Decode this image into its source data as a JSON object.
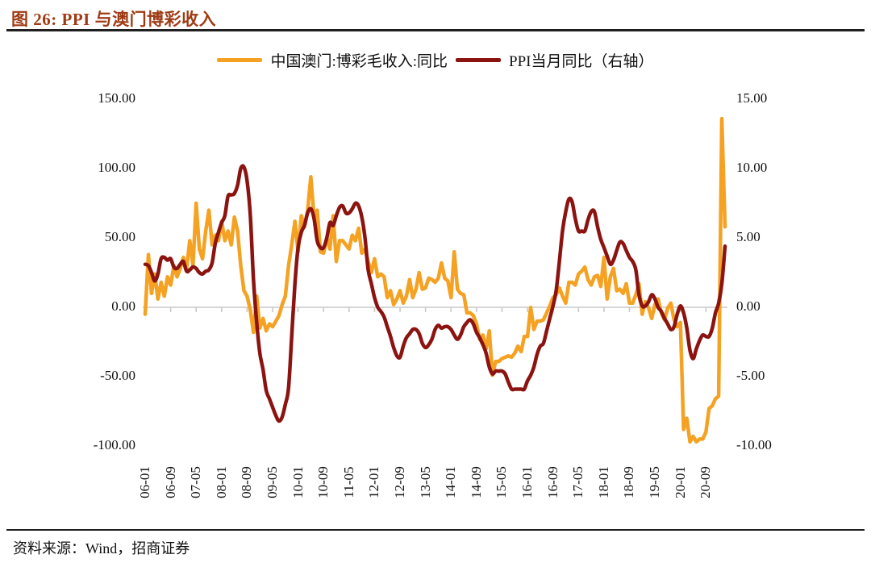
{
  "page": {
    "title": "图 26: PPI 与澳门博彩收入",
    "source": "资料来源：Wind，招商证券"
  },
  "legend": [
    {
      "label": "中国澳门:博彩毛收入:同比",
      "color": "#F5A122"
    },
    {
      "label": "PPI当月同比（右轴）",
      "color": "#8B1310"
    }
  ],
  "colors": {
    "title": "#9E3B14",
    "rule": "#1F1F1F",
    "axis_line": "#C9C9C9",
    "text": "#111111"
  },
  "chart_data": {
    "type": "line",
    "title": "图 26: PPI 与澳门博彩收入",
    "grid": "zero-line-only",
    "legend_position": "top-center",
    "left_axis": {
      "labels": [
        "150.00",
        "100.00",
        "50.00",
        "0.00",
        "-50.00",
        "-100.00"
      ],
      "values": [
        150,
        100,
        50,
        0,
        -50,
        -100
      ],
      "min": -100,
      "max": 150
    },
    "right_axis": {
      "labels": [
        "15.00",
        "10.00",
        "5.00",
        "0.00",
        "-5.00",
        "-10.00"
      ],
      "values": [
        15,
        10,
        5,
        0,
        -5,
        -10
      ],
      "min": -10,
      "max": 15
    },
    "x_tick_labels": [
      "06-01",
      "06-09",
      "07-05",
      "08-01",
      "08-09",
      "09-05",
      "10-01",
      "10-09",
      "11-05",
      "12-01",
      "12-09",
      "13-05",
      "14-01",
      "14-09",
      "15-05",
      "16-01",
      "16-09",
      "17-05",
      "18-01",
      "18-09",
      "19-05",
      "20-01",
      "20-09"
    ],
    "months": [
      "06-01",
      "06-02",
      "06-03",
      "06-04",
      "06-05",
      "06-06",
      "06-07",
      "06-08",
      "06-09",
      "06-10",
      "06-11",
      "06-12",
      "07-01",
      "07-02",
      "07-03",
      "07-04",
      "07-05",
      "07-06",
      "07-07",
      "07-08",
      "07-09",
      "07-10",
      "07-11",
      "07-12",
      "08-01",
      "08-02",
      "08-03",
      "08-04",
      "08-05",
      "08-06",
      "08-07",
      "08-08",
      "08-09",
      "08-10",
      "08-11",
      "08-12",
      "09-01",
      "09-02",
      "09-03",
      "09-04",
      "09-05",
      "09-06",
      "09-07",
      "09-08",
      "09-09",
      "09-10",
      "09-11",
      "09-12",
      "10-01",
      "10-02",
      "10-03",
      "10-04",
      "10-05",
      "10-06",
      "10-07",
      "10-08",
      "10-09",
      "10-10",
      "10-11",
      "10-12",
      "11-01",
      "11-02",
      "11-03",
      "11-04",
      "11-05",
      "11-06",
      "11-07",
      "11-08",
      "11-09",
      "11-10",
      "11-11",
      "11-12",
      "12-01",
      "12-02",
      "12-03",
      "12-04",
      "12-05",
      "12-06",
      "12-07",
      "12-08",
      "12-09",
      "12-10",
      "12-11",
      "12-12",
      "13-01",
      "13-02",
      "13-03",
      "13-04",
      "13-05",
      "13-06",
      "13-07",
      "13-08",
      "13-09",
      "13-10",
      "13-11",
      "13-12",
      "14-01",
      "14-02",
      "14-03",
      "14-04",
      "14-05",
      "14-06",
      "14-07",
      "14-08",
      "14-09",
      "14-10",
      "14-11",
      "14-12",
      "15-01",
      "15-02",
      "15-03",
      "15-04",
      "15-05",
      "15-06",
      "15-07",
      "15-08",
      "15-09",
      "15-10",
      "15-11",
      "15-12",
      "16-01",
      "16-02",
      "16-03",
      "16-04",
      "16-05",
      "16-06",
      "16-07",
      "16-08",
      "16-09",
      "16-10",
      "16-11",
      "16-12",
      "17-01",
      "17-02",
      "17-03",
      "17-04",
      "17-05",
      "17-06",
      "17-07",
      "17-08",
      "17-09",
      "17-10",
      "17-11",
      "17-12",
      "18-01",
      "18-02",
      "18-03",
      "18-04",
      "18-05",
      "18-06",
      "18-07",
      "18-08",
      "18-09",
      "18-10",
      "18-11",
      "18-12",
      "19-01",
      "19-02",
      "19-03",
      "19-04",
      "19-05",
      "19-06",
      "19-07",
      "19-08",
      "19-09",
      "19-10",
      "19-11",
      "19-12",
      "20-01",
      "20-02",
      "20-03",
      "20-04",
      "20-05",
      "20-06",
      "20-07",
      "20-08",
      "20-09",
      "20-10",
      "20-11",
      "20-12",
      "21-01",
      "21-02",
      "21-03"
    ],
    "series": [
      {
        "name": "中国澳门:博彩毛收入:同比",
        "axis": "left",
        "color": "#F5A122",
        "values": [
          -5,
          38,
          10,
          24,
          6,
          18,
          8,
          22,
          16,
          30,
          22,
          28,
          36,
          28,
          48,
          30,
          75,
          42,
          35,
          55,
          70,
          45,
          52,
          48,
          62,
          48,
          55,
          45,
          65,
          55,
          30,
          12,
          8,
          -2,
          -18,
          8,
          -15,
          -8,
          -17,
          -12,
          -14,
          -10,
          -6,
          2,
          8,
          30,
          45,
          62,
          40,
          66,
          58,
          70,
          94,
          65,
          70,
          40,
          39,
          50,
          42,
          66,
          33,
          48,
          48,
          45,
          42,
          52,
          48,
          57,
          39,
          42,
          33,
          25,
          35,
          22,
          24,
          22,
          7,
          12,
          2,
          6,
          12,
          3,
          8,
          20,
          7,
          13,
          25,
          13,
          14,
          21,
          20,
          18,
          21,
          32,
          21,
          19,
          7,
          40,
          13,
          10,
          9,
          -4,
          -4,
          -6,
          -12,
          -23,
          -20,
          -30,
          -17,
          -49,
          -39,
          -39,
          -37,
          -36,
          -35,
          -36,
          -33,
          -28,
          -32,
          -21,
          -21,
          -0.1,
          -16,
          -10,
          -10,
          -9,
          -4,
          1,
          7,
          9,
          14,
          8,
          3,
          18,
          18,
          16,
          24,
          26,
          29,
          20,
          16,
          22,
          23,
          15,
          36,
          6,
          22,
          28,
          12,
          13,
          10,
          17,
          3,
          3,
          9,
          17,
          -5,
          4,
          -0.4,
          -8,
          2,
          6,
          -4,
          -9,
          -0.6,
          3,
          -9,
          -14,
          -11,
          -88,
          -80,
          -97,
          -93,
          -97,
          -95,
          -95,
          -90,
          -73,
          -71,
          -66,
          -64,
          136,
          58
        ]
      },
      {
        "name": "PPI当月同比（右轴）",
        "axis": "right",
        "color": "#8B1310",
        "values": [
          3.1,
          3.0,
          2.5,
          1.9,
          2.4,
          3.5,
          3.6,
          3.4,
          3.5,
          2.9,
          2.8,
          3.1,
          3.3,
          2.6,
          2.7,
          2.9,
          2.8,
          2.5,
          2.4,
          2.6,
          2.7,
          3.2,
          4.6,
          5.4,
          6.1,
          6.6,
          8.0,
          8.1,
          8.2,
          8.8,
          10.0,
          10.1,
          9.1,
          6.6,
          2.0,
          -1.1,
          -3.3,
          -4.5,
          -6.0,
          -6.6,
          -7.2,
          -7.8,
          -8.2,
          -7.9,
          -7.0,
          -5.8,
          -2.1,
          1.7,
          4.3,
          5.4,
          5.9,
          6.8,
          7.1,
          6.4,
          4.8,
          4.3,
          4.3,
          5.0,
          6.1,
          5.9,
          6.6,
          7.2,
          7.3,
          6.8,
          6.8,
          7.1,
          7.5,
          7.3,
          6.5,
          5.0,
          2.7,
          1.7,
          0.7,
          0.0,
          -0.3,
          -0.7,
          -1.4,
          -2.1,
          -2.9,
          -3.5,
          -3.6,
          -2.8,
          -2.2,
          -1.9,
          -1.6,
          -1.6,
          -1.9,
          -2.6,
          -2.9,
          -2.7,
          -2.3,
          -1.6,
          -1.3,
          -1.5,
          -1.4,
          -1.4,
          -1.6,
          -2.0,
          -2.3,
          -2.0,
          -1.4,
          -1.1,
          -0.9,
          -1.2,
          -1.8,
          -2.2,
          -2.7,
          -3.3,
          -4.3,
          -4.8,
          -4.6,
          -4.6,
          -4.6,
          -4.8,
          -5.4,
          -5.9,
          -5.9,
          -5.9,
          -5.9,
          -5.9,
          -5.3,
          -4.9,
          -4.3,
          -3.4,
          -2.8,
          -2.6,
          -1.7,
          -0.8,
          0.1,
          1.2,
          3.3,
          5.5,
          6.9,
          7.8,
          7.6,
          6.4,
          5.5,
          5.5,
          5.5,
          6.3,
          6.9,
          6.9,
          5.8,
          4.9,
          4.3,
          3.7,
          3.1,
          3.4,
          4.1,
          4.7,
          4.6,
          4.1,
          3.6,
          3.3,
          2.7,
          0.9,
          0.1,
          0.1,
          0.4,
          0.9,
          0.6,
          0.0,
          -0.3,
          -0.8,
          -1.2,
          -1.6,
          -1.4,
          -0.5,
          0.1,
          -0.4,
          -1.5,
          -3.1,
          -3.7,
          -3.0,
          -2.4,
          -2.0,
          -2.1,
          -2.1,
          -1.5,
          -0.4,
          0.3,
          1.7,
          4.4
        ]
      }
    ]
  }
}
